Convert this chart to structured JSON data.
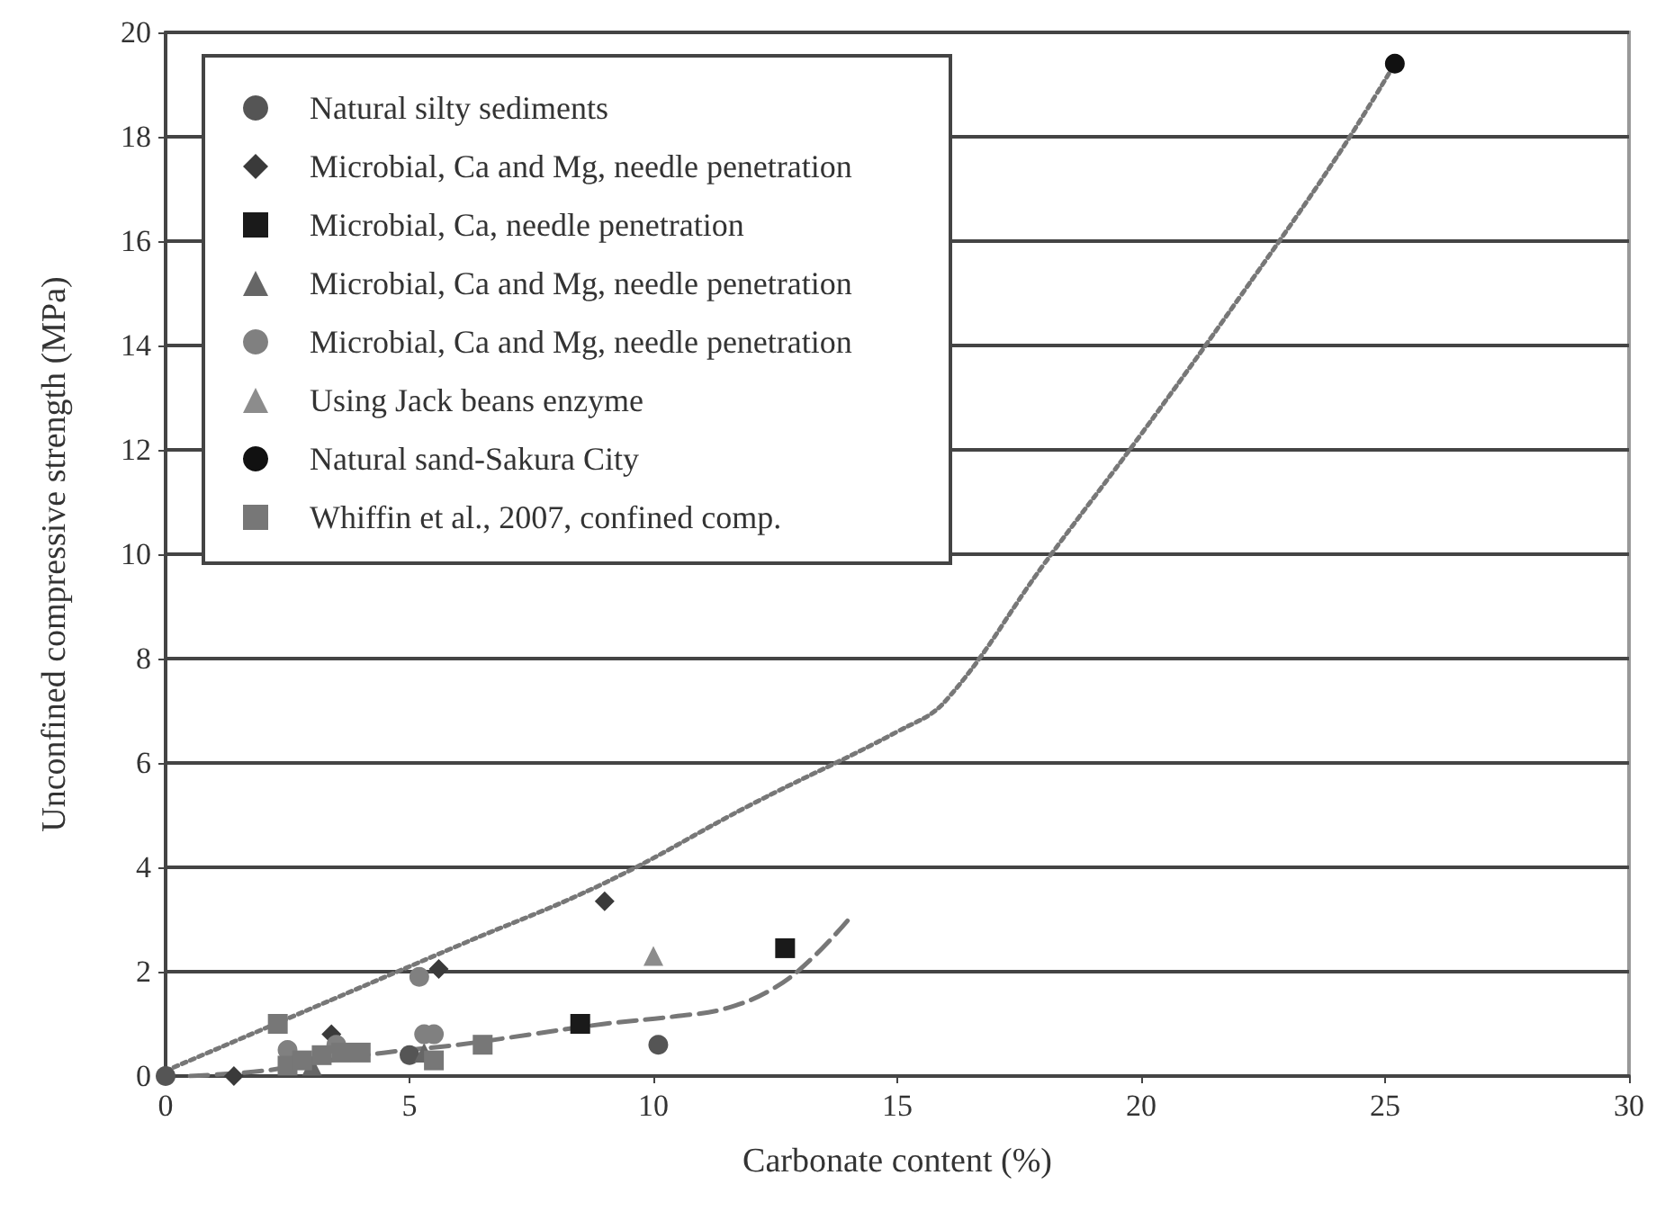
{
  "chart_data": {
    "type": "scatter",
    "xlabel": "Carbonate content (%)",
    "ylabel": "Unconfined compressive strength (MPa)",
    "xlim": [
      0,
      30
    ],
    "xticks": [
      0,
      5,
      10,
      15,
      20,
      25,
      30
    ],
    "ylim": [
      0,
      20
    ],
    "yticks": [
      0,
      2,
      4,
      6,
      8,
      10,
      12,
      14,
      16,
      18,
      20
    ],
    "grid": "y",
    "legend": "top left",
    "series": [
      {
        "name": "Natural silty sediments",
        "color": "#555555",
        "marker": "circle",
        "x": [
          0,
          5,
          10.1
        ],
        "values": [
          0,
          0.4,
          0.6
        ]
      },
      {
        "name": "Microbial, Ca and Mg, needle penetration",
        "color": "#3a3a3a",
        "marker": "diamond",
        "x": [
          1.4,
          3.4,
          5.6,
          9
        ],
        "values": [
          0,
          0.8,
          2.05,
          3.35
        ]
      },
      {
        "name": "Microbial, Ca, needle penetration",
        "color": "#1a1a1a",
        "marker": "square",
        "x": [
          8.5,
          12.7
        ],
        "values": [
          1.0,
          2.45
        ]
      },
      {
        "name": "Microbial, Ca and Mg, needle penetration",
        "color": "#666666",
        "marker": "triangle",
        "x": [
          3,
          5.3
        ],
        "values": [
          0.2,
          0.45
        ]
      },
      {
        "name": "Microbial, Ca and Mg, needle penetration",
        "color": "#808080",
        "marker": "circle",
        "x": [
          2.5,
          3.5,
          5.2,
          5.3,
          5.5
        ],
        "values": [
          0.5,
          0.6,
          1.9,
          0.8,
          0.8
        ]
      },
      {
        "name": "Using Jack beans enzyme",
        "color": "#8c8c8c",
        "marker": "triangle",
        "x": [
          10
        ],
        "values": [
          2.3
        ]
      },
      {
        "name": "Natural sand-Sakura City",
        "color": "#111111",
        "marker": "circle",
        "x": [
          25.2
        ],
        "values": [
          19.4
        ]
      },
      {
        "name": "Whiffin et al., 2007, confined comp.",
        "color": "#777777",
        "marker": "square",
        "x": [
          2.3,
          2.5,
          2.8,
          3.2,
          3.6,
          4,
          5.5,
          6.5
        ],
        "values": [
          1.0,
          0.2,
          0.3,
          0.4,
          0.45,
          0.45,
          0.3,
          0.6
        ]
      },
      {
        "type": "line",
        "color": "#777777",
        "marker": "none",
        "line_style": "dotted",
        "x": [
          0,
          3,
          6,
          9,
          12,
          15,
          16,
          18,
          20,
          22,
          24,
          25.2
        ],
        "values": [
          0.1,
          1.3,
          2.5,
          3.7,
          5.2,
          6.6,
          7.2,
          9.8,
          12.3,
          14.9,
          17.6,
          19.4
        ]
      },
      {
        "type": "line",
        "color": "#777777",
        "marker": "none",
        "line_style": "dashed",
        "x": [
          0.5,
          2,
          3,
          4.5,
          6,
          7.5,
          9,
          10.5,
          11.5,
          12.5,
          13.3,
          14
        ],
        "values": [
          0,
          0.1,
          0.25,
          0.45,
          0.6,
          0.8,
          1.0,
          1.15,
          1.3,
          1.7,
          2.3,
          3.0
        ]
      }
    ]
  }
}
